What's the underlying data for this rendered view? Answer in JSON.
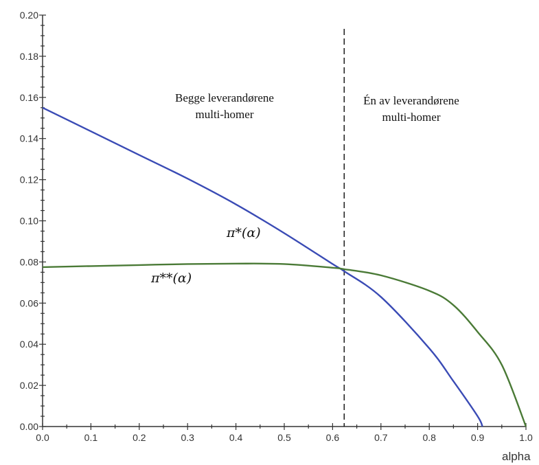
{
  "chart_data": {
    "type": "line",
    "title": "",
    "xlabel": "alpha",
    "ylabel": "",
    "xlim": [
      0.0,
      1.0
    ],
    "ylim": [
      0.0,
      0.2
    ],
    "grid": false,
    "x_ticks": [
      "0.0",
      "0.1",
      "0.2",
      "0.3",
      "0.4",
      "0.5",
      "0.6",
      "0.7",
      "0.8",
      "0.9",
      "1.0"
    ],
    "y_ticks": [
      "0.00",
      "0.02",
      "0.04",
      "0.06",
      "0.08",
      "0.10",
      "0.12",
      "0.14",
      "0.16",
      "0.18",
      "0.20"
    ],
    "series": [
      {
        "name": "π*(α)",
        "color": "#3a4bb5",
        "x": [
          0.0,
          0.1,
          0.2,
          0.3,
          0.4,
          0.5,
          0.6,
          0.624,
          0.7,
          0.8,
          0.85,
          0.9,
          0.91
        ],
        "y": [
          0.155,
          0.1435,
          0.132,
          0.1205,
          0.108,
          0.094,
          0.079,
          0.0755,
          0.063,
          0.038,
          0.022,
          0.005,
          0.0
        ]
      },
      {
        "name": "π**(α)",
        "color": "#4a7a36",
        "x": [
          0.0,
          0.1,
          0.2,
          0.3,
          0.4,
          0.5,
          0.6,
          0.624,
          0.7,
          0.8,
          0.85,
          0.9,
          0.95,
          1.0
        ],
        "y": [
          0.0775,
          0.078,
          0.0785,
          0.079,
          0.0792,
          0.079,
          0.0772,
          0.0765,
          0.0735,
          0.066,
          0.059,
          0.046,
          0.03,
          0.0
        ]
      }
    ],
    "vline": {
      "x": 0.624,
      "style": "dashed",
      "color": "#222222"
    },
    "annotations": {
      "left_region": [
        "Begge leverandørene",
        "multi-homer"
      ],
      "right_region": [
        "Én av leverandørene",
        "multi-homer"
      ]
    }
  }
}
